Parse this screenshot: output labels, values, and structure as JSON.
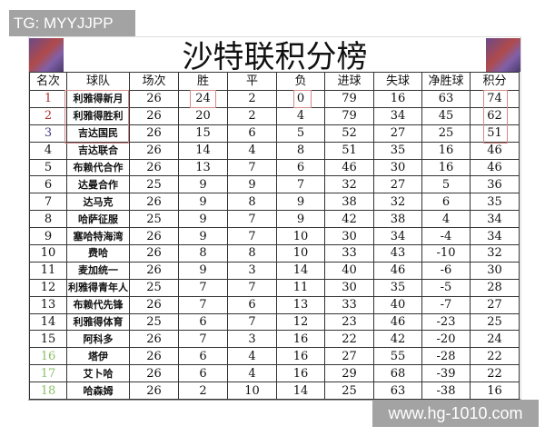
{
  "watermarks": {
    "top_left": "TG: MYYJJPP",
    "bottom_right": "www.hg-1010.com"
  },
  "title": "沙特联积分榜",
  "colors": {
    "rank_top": "#b03030",
    "rank_third": "#4a3a8a",
    "rank_relegation": "#8cbf6a",
    "highlight_box": "#d48a8a"
  },
  "headers": [
    "名次",
    "球队",
    "场次",
    "胜",
    "平",
    "负",
    "进球",
    "失球",
    "净胜球",
    "积分"
  ],
  "rows": [
    [
      "1",
      "利雅得新月",
      "26",
      "24",
      "2",
      "0",
      "79",
      "16",
      "63",
      "74"
    ],
    [
      "2",
      "利雅得胜利",
      "26",
      "20",
      "2",
      "4",
      "79",
      "34",
      "45",
      "62"
    ],
    [
      "3",
      "吉达国民",
      "26",
      "15",
      "6",
      "5",
      "52",
      "27",
      "25",
      "51"
    ],
    [
      "4",
      "吉达联合",
      "26",
      "14",
      "4",
      "8",
      "51",
      "35",
      "16",
      "46"
    ],
    [
      "5",
      "布赖代合作",
      "26",
      "13",
      "7",
      "6",
      "46",
      "30",
      "16",
      "46"
    ],
    [
      "6",
      "达曼合作",
      "25",
      "9",
      "9",
      "7",
      "32",
      "27",
      "5",
      "36"
    ],
    [
      "7",
      "达马克",
      "26",
      "9",
      "8",
      "9",
      "38",
      "32",
      "6",
      "35"
    ],
    [
      "8",
      "哈萨征服",
      "25",
      "9",
      "7",
      "9",
      "42",
      "38",
      "4",
      "34"
    ],
    [
      "9",
      "塞哈特海湾",
      "26",
      "9",
      "7",
      "10",
      "30",
      "34",
      "-4",
      "34"
    ],
    [
      "10",
      "费哈",
      "26",
      "8",
      "8",
      "10",
      "33",
      "43",
      "-10",
      "32"
    ],
    [
      "11",
      "麦加统一",
      "26",
      "9",
      "3",
      "14",
      "40",
      "46",
      "-6",
      "30"
    ],
    [
      "12",
      "利雅得青年人",
      "25",
      "7",
      "7",
      "11",
      "30",
      "35",
      "-5",
      "28"
    ],
    [
      "13",
      "布赖代先锋",
      "26",
      "7",
      "6",
      "13",
      "33",
      "40",
      "-7",
      "27"
    ],
    [
      "14",
      "利雅得体育",
      "25",
      "6",
      "7",
      "12",
      "23",
      "46",
      "-23",
      "25"
    ],
    [
      "15",
      "阿科多",
      "26",
      "7",
      "3",
      "16",
      "22",
      "42",
      "-20",
      "24"
    ],
    [
      "16",
      "塔伊",
      "26",
      "6",
      "4",
      "16",
      "27",
      "55",
      "-28",
      "22"
    ],
    [
      "17",
      "艾卜哈",
      "26",
      "6",
      "4",
      "16",
      "29",
      "68",
      "-39",
      "22"
    ],
    [
      "18",
      "哈森姆",
      "26",
      "2",
      "10",
      "14",
      "25",
      "63",
      "-38",
      "16"
    ]
  ]
}
